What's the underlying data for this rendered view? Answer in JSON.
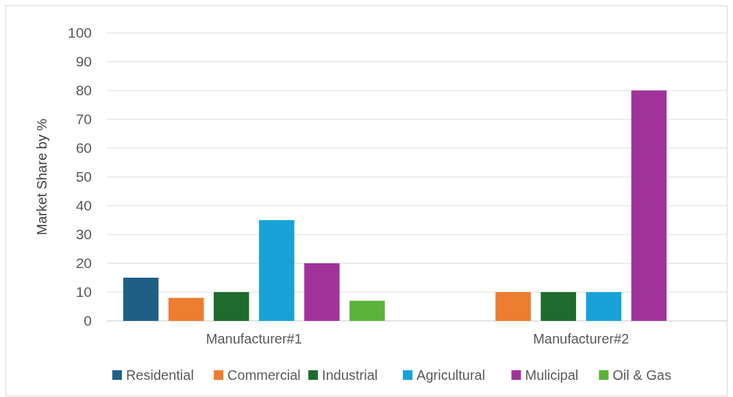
{
  "chart_data": {
    "type": "bar",
    "ylabel": "Market Share by %",
    "categories": [
      "Manufacturer#1",
      "Manufacturer#2"
    ],
    "series": [
      {
        "name": "Residential",
        "color": "#1f5f86",
        "values": [
          15,
          null
        ]
      },
      {
        "name": "Commercial",
        "color": "#ed7d31",
        "values": [
          8,
          10
        ]
      },
      {
        "name": "Industrial",
        "color": "#1e6b2e",
        "values": [
          10,
          10
        ]
      },
      {
        "name": "Agricultural",
        "color": "#19a2d8",
        "values": [
          35,
          10
        ]
      },
      {
        "name": "Mulicipal",
        "color": "#a0339a",
        "values": [
          20,
          80
        ]
      },
      {
        "name": "Oil & Gas",
        "color": "#5bb33a",
        "values": [
          7,
          null
        ]
      }
    ],
    "ylim": [
      0,
      100
    ],
    "yticks": [
      0,
      10,
      20,
      30,
      40,
      50,
      60,
      70,
      80,
      90,
      100
    ],
    "grid": "y",
    "legend": "bottom"
  }
}
